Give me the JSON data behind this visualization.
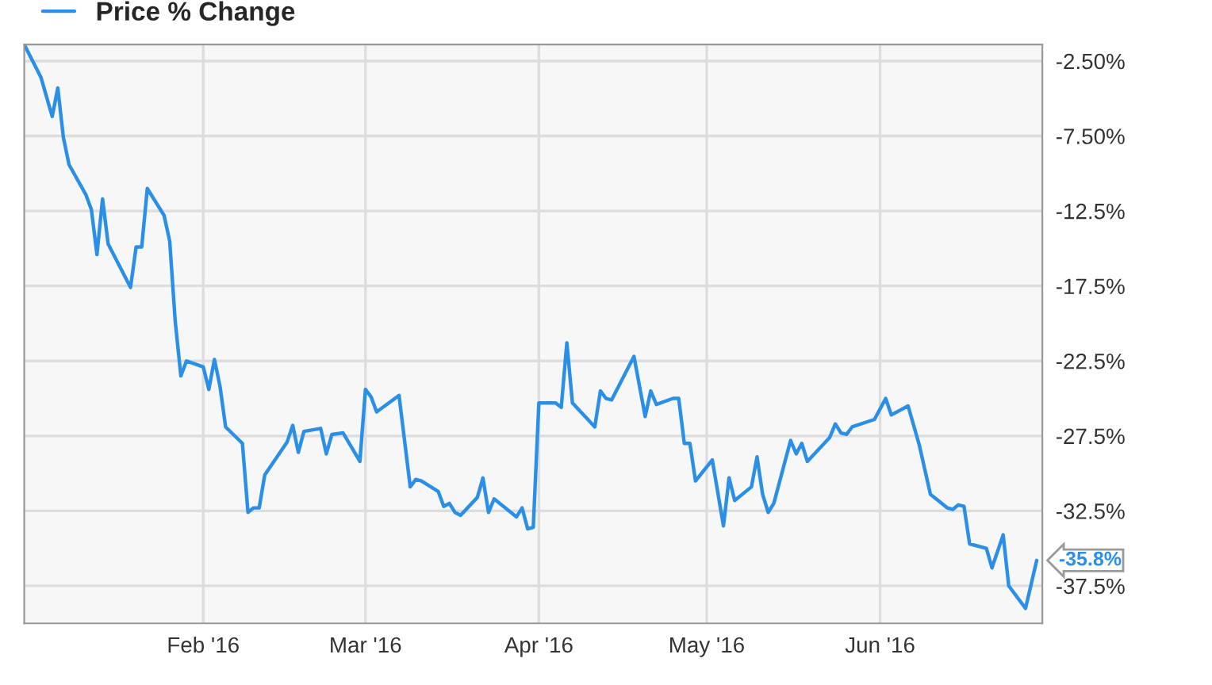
{
  "chart_data": {
    "type": "line",
    "x": [
      "2015-12-31",
      "2016-01-03",
      "2016-01-05",
      "2016-01-06",
      "2016-01-07",
      "2016-01-08",
      "2016-01-11",
      "2016-01-12",
      "2016-01-13",
      "2016-01-14",
      "2016-01-15",
      "2016-01-19",
      "2016-01-20",
      "2016-01-21",
      "2016-01-22",
      "2016-01-25",
      "2016-01-26",
      "2016-01-27",
      "2016-01-28",
      "2016-01-29",
      "2016-02-01",
      "2016-02-02",
      "2016-02-03",
      "2016-02-04",
      "2016-02-05",
      "2016-02-08",
      "2016-02-09",
      "2016-02-10",
      "2016-02-11",
      "2016-02-12",
      "2016-02-16",
      "2016-02-17",
      "2016-02-18",
      "2016-02-19",
      "2016-02-22",
      "2016-02-23",
      "2016-02-24",
      "2016-02-26",
      "2016-02-29",
      "2016-03-01",
      "2016-03-02",
      "2016-03-03",
      "2016-03-07",
      "2016-03-09",
      "2016-03-10",
      "2016-03-11",
      "2016-03-14",
      "2016-03-15",
      "2016-03-16",
      "2016-03-17",
      "2016-03-18",
      "2016-03-21",
      "2016-03-22",
      "2016-03-23",
      "2016-03-24",
      "2016-03-28",
      "2016-03-29",
      "2016-03-30",
      "2016-03-31",
      "2016-04-01",
      "2016-04-04",
      "2016-04-05",
      "2016-04-06",
      "2016-04-07",
      "2016-04-11",
      "2016-04-12",
      "2016-04-13",
      "2016-04-14",
      "2016-04-18",
      "2016-04-20",
      "2016-04-21",
      "2016-04-22",
      "2016-04-25",
      "2016-04-26",
      "2016-04-27",
      "2016-04-28",
      "2016-04-29",
      "2016-05-02",
      "2016-05-04",
      "2016-05-05",
      "2016-05-06",
      "2016-05-09",
      "2016-05-10",
      "2016-05-11",
      "2016-05-12",
      "2016-05-13",
      "2016-05-16",
      "2016-05-17",
      "2016-05-18",
      "2016-05-19",
      "2016-05-23",
      "2016-05-24",
      "2016-05-25",
      "2016-05-26",
      "2016-05-27",
      "2016-05-31",
      "2016-06-02",
      "2016-06-03",
      "2016-06-06",
      "2016-06-08",
      "2016-06-10",
      "2016-06-13",
      "2016-06-14",
      "2016-06-15",
      "2016-06-16",
      "2016-06-17",
      "2016-06-20",
      "2016-06-21",
      "2016-06-23",
      "2016-06-24",
      "2016-06-27",
      "2016-06-29"
    ],
    "series": [
      {
        "name": "Price % Change",
        "color": "#2b8fe8",
        "values": [
          -1.4,
          -3.6,
          -6.2,
          -4.3,
          -7.6,
          -9.4,
          -11.4,
          -12.4,
          -15.4,
          -11.7,
          -14.7,
          -17.6,
          -14.9,
          -14.9,
          -11.0,
          -12.8,
          -14.5,
          -19.9,
          -23.5,
          -22.5,
          -22.9,
          -24.4,
          -22.4,
          -24.2,
          -26.9,
          -28.0,
          -32.6,
          -32.3,
          -32.3,
          -30.1,
          -27.9,
          -26.8,
          -28.6,
          -27.2,
          -27.0,
          -28.7,
          -27.4,
          -27.3,
          -29.2,
          -24.4,
          -24.9,
          -25.9,
          -24.8,
          -30.9,
          -30.4,
          -30.5,
          -31.2,
          -32.2,
          -32.0,
          -32.6,
          -32.8,
          -31.6,
          -30.3,
          -32.6,
          -31.7,
          -32.9,
          -32.3,
          -33.7,
          -33.6,
          -25.3,
          -25.3,
          -25.6,
          -21.3,
          -25.3,
          -26.9,
          -24.5,
          -25.0,
          -25.1,
          -22.2,
          -26.2,
          -24.5,
          -25.4,
          -25.0,
          -25.0,
          -28.0,
          -28.0,
          -30.5,
          -29.1,
          -33.5,
          -30.3,
          -31.8,
          -30.9,
          -28.9,
          -31.4,
          -32.6,
          -32.0,
          -27.8,
          -28.7,
          -28.0,
          -29.2,
          -27.6,
          -26.7,
          -27.3,
          -27.4,
          -26.9,
          -26.4,
          -25.0,
          -26.1,
          -25.5,
          -28.1,
          -31.4,
          -32.3,
          -32.4,
          -32.1,
          -32.2,
          -34.7,
          -35.0,
          -36.3,
          -34.1,
          -37.5,
          -39.0,
          -35.8
        ]
      }
    ],
    "xlim": [
      "2015-12-31",
      "2016-06-30"
    ],
    "xticks": [
      {
        "value": "2016-02-01",
        "label": "Feb '16"
      },
      {
        "value": "2016-03-01",
        "label": "Mar '16"
      },
      {
        "value": "2016-04-01",
        "label": "Apr '16"
      },
      {
        "value": "2016-05-01",
        "label": "May '16"
      },
      {
        "value": "2016-06-01",
        "label": "Jun '16"
      }
    ],
    "ylim": [
      -40.0,
      -1.4
    ],
    "yticks": [
      {
        "value": -2.5,
        "label": "-2.50%"
      },
      {
        "value": -7.5,
        "label": "-7.50%"
      },
      {
        "value": -12.5,
        "label": "-12.5%"
      },
      {
        "value": -17.5,
        "label": "-17.5%"
      },
      {
        "value": -22.5,
        "label": "-22.5%"
      },
      {
        "value": -27.5,
        "label": "-27.5%"
      },
      {
        "value": -32.5,
        "label": "-32.5%"
      },
      {
        "value": -37.5,
        "label": "-37.5%"
      }
    ],
    "annotations": [
      {
        "text": "-35.8%",
        "x": "2016-06-29",
        "y": -35.8
      }
    ],
    "grid": true,
    "legend": "top left",
    "marker": "none",
    "line_style": "solid"
  }
}
